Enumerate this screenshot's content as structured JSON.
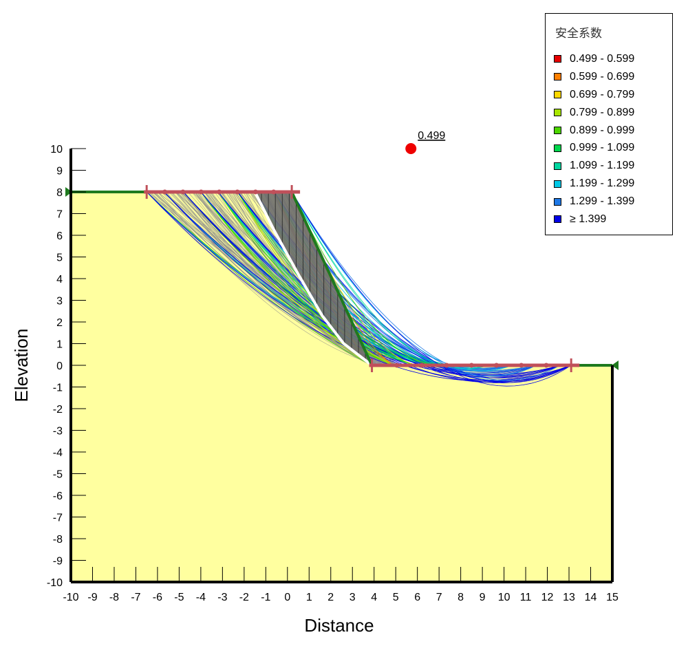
{
  "chart_data": {
    "type": "slope-stability",
    "xlabel": "Distance",
    "ylabel": "Elevation",
    "xlim": [
      -10,
      15
    ],
    "ylim": [
      -10,
      10
    ],
    "x_ticks": [
      -10,
      -9,
      -8,
      -7,
      -6,
      -5,
      -4,
      -3,
      -2,
      -1,
      0,
      1,
      2,
      3,
      4,
      5,
      6,
      7,
      8,
      9,
      10,
      11,
      12,
      13,
      14,
      15
    ],
    "y_ticks": [
      -10,
      -9,
      -8,
      -7,
      -6,
      -5,
      -4,
      -3,
      -2,
      -1,
      0,
      1,
      2,
      3,
      4,
      5,
      6,
      7,
      8,
      9,
      10
    ],
    "ground_profile": [
      [
        -10,
        8
      ],
      [
        0.2,
        8
      ],
      [
        3.9,
        0
      ],
      [
        15,
        0
      ]
    ],
    "soil_color": "#ffff9f",
    "ground_line_color": "#1e7a1e",
    "entry_range": [
      [
        -6.5,
        8
      ],
      [
        0.2,
        8
      ]
    ],
    "exit_range": [
      [
        3.9,
        0
      ],
      [
        13.1,
        0
      ]
    ],
    "range_color": "#c0505a",
    "critical_slip_center": {
      "x": 5.7,
      "y": 10.0,
      "factor_of_safety": "0.499"
    },
    "critical_slip_surface": [
      [
        -1.5,
        8
      ],
      [
        -0.6,
        6.2
      ],
      [
        0.5,
        4.2
      ],
      [
        1.6,
        2.3
      ],
      [
        2.6,
        1.0
      ],
      [
        3.9,
        0
      ]
    ],
    "legend_title": "安全系数",
    "legend_position": "top-right",
    "factor_of_safety_ranges": [
      {
        "label": "0.499 - 0.599",
        "color": "#e60000"
      },
      {
        "label": "0.599 - 0.699",
        "color": "#ff7f00"
      },
      {
        "label": "0.699 - 0.799",
        "color": "#ffd700"
      },
      {
        "label": "0.799 - 0.899",
        "color": "#a8e600"
      },
      {
        "label": "0.899 - 0.999",
        "color": "#4cd600"
      },
      {
        "label": "0.999 - 1.099",
        "color": "#00d64c"
      },
      {
        "label": "1.099 - 1.199",
        "color": "#00d6a0"
      },
      {
        "label": "1.199 - 1.299",
        "color": "#00c8e6"
      },
      {
        "label": "1.299 - 1.399",
        "color": "#1e78e6"
      },
      {
        "label": "≥ 1.399",
        "color": "#0000e6"
      }
    ]
  }
}
